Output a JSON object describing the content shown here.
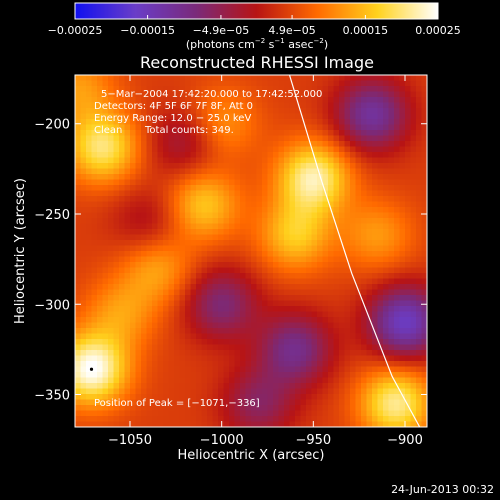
{
  "chart_data": {
    "type": "heatmap",
    "title": "Reconstructed RHESSI Image",
    "xlabel": "Heliocentric X (arcsec)",
    "ylabel": "Heliocentric Y (arcsec)",
    "xlim": [
      -1080,
      -888
    ],
    "ylim": [
      -368,
      -173
    ],
    "x_ticks": [
      -1050,
      -1000,
      -950,
      -900
    ],
    "x_tick_labels": [
      "−1050",
      "−1000",
      "−950",
      "−900"
    ],
    "y_ticks": [
      -200,
      -250,
      -300,
      -350
    ],
    "y_tick_labels": [
      "−200",
      "−250",
      "−300",
      "−350"
    ],
    "colorbar": {
      "min": -0.00025,
      "max": 0.00025,
      "tick_values": [
        -0.00025,
        -0.00015,
        -4.9e-05,
        4.9e-05,
        0.00015,
        0.00025
      ],
      "tick_labels": [
        "−0.00025",
        "−0.00015",
        "−4.9e−05",
        "4.9e−05",
        "0.00015",
        "0.00025"
      ],
      "unit_label_parts": [
        "(photons cm",
        "−2",
        " s",
        "−1",
        " asec",
        "−2",
        ")"
      ],
      "colors": [
        "#1010f0",
        "#6a3dc8",
        "#7a2a7a",
        "#b81414",
        "#ff6a00",
        "#ffd21e",
        "#ffffff"
      ]
    },
    "annotations": [
      "5−Mar−2004 17:42:20.000 to 17:42:52.000",
      "Detectors: 4F 5F 6F 7F 8F, Att 0",
      "Energy Range: 12.0 − 25.0 keV",
      "Clean",
      "Total counts: 349.",
      "Position of Peak = [−1071,−336]"
    ],
    "peak_position": [
      -1071,
      -336
    ],
    "limb_curve": {
      "color": "#ffffff",
      "points": [
        [
          -963,
          -173
        ],
        [
          -946,
          -230
        ],
        [
          -929,
          -283
        ],
        [
          -907,
          -340
        ],
        [
          -892,
          -368
        ]
      ]
    },
    "sources": [
      {
        "x": -1065,
        "y": -213,
        "value": 0.00016
      },
      {
        "x": -1000,
        "y": -200,
        "value": 8e-05
      },
      {
        "x": -950,
        "y": -230,
        "value": 0.00018
      },
      {
        "x": -1010,
        "y": -245,
        "value": 0.00012
      },
      {
        "x": -960,
        "y": -262,
        "value": 0.00012
      },
      {
        "x": -1035,
        "y": -280,
        "value": 9e-05
      },
      {
        "x": -1071,
        "y": -336,
        "value": 0.00021
      },
      {
        "x": -1055,
        "y": -305,
        "value": 8e-05
      },
      {
        "x": -915,
        "y": -262,
        "value": 8e-05
      },
      {
        "x": -905,
        "y": -355,
        "value": 0.00017
      },
      {
        "x": -1078,
        "y": -180,
        "value": 8e-05
      },
      {
        "x": -1020,
        "y": -210,
        "value": -8e-05
      },
      {
        "x": -1000,
        "y": -300,
        "value": -0.00012
      },
      {
        "x": -960,
        "y": -325,
        "value": -0.00014
      },
      {
        "x": -918,
        "y": -195,
        "value": -0.00016
      },
      {
        "x": -900,
        "y": -310,
        "value": -0.0002
      },
      {
        "x": -1040,
        "y": -255,
        "value": -6e-05
      },
      {
        "x": -980,
        "y": -355,
        "value": -0.0001
      }
    ]
  },
  "footer": {
    "timestamp": "24-Jun-2013 00:32"
  }
}
